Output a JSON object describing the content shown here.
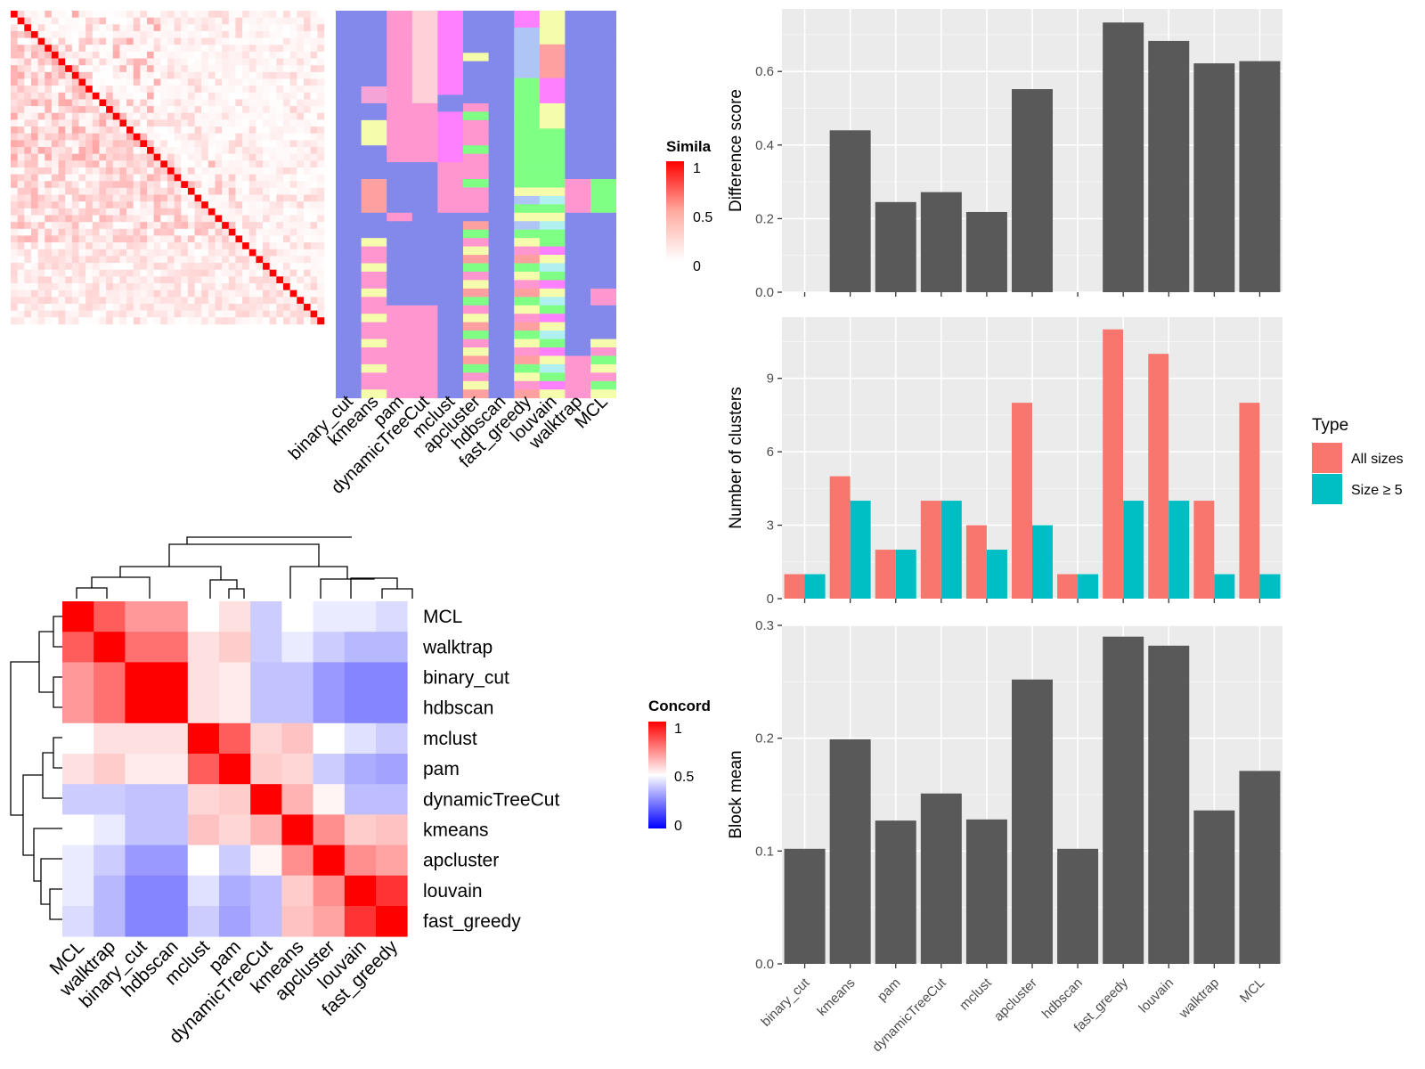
{
  "colors": {
    "panel_bg": "#ebebeb",
    "grid_major": "#ffffff",
    "bar_fill": "#595959",
    "all_sizes": "#f8766d",
    "size_ge5": "#00bfc4",
    "heat_red": "#ff0000",
    "heat_white": "#ffffff",
    "heat_blue": "#0000ff",
    "assign_palette": [
      "#8289ea",
      "#ff96cf",
      "#f5a4d8",
      "#ffa0a0",
      "#f5fcab",
      "#80ff85",
      "#aec5f5",
      "#b0f0f0",
      "#ff80ff",
      "#ffd0d6",
      "#ffffa8",
      "#a6f0f0"
    ]
  },
  "similarity_heatmap": {
    "legend_title": "Simila",
    "legend_ticks": [
      "1",
      "0.5",
      "0"
    ],
    "n_cells": 46
  },
  "assignment_heatmap": {
    "columns": [
      "binary_cut",
      "kmeans",
      "pam",
      "dynamicTreeCut",
      "mclust",
      "apcluster",
      "hdbscan",
      "fast_greedy",
      "louvain",
      "walktrap",
      "MCL"
    ],
    "n_rows": 46
  },
  "chart_data": [
    {
      "type": "heatmap",
      "title": "",
      "legend_title": "Concord",
      "legend_ticks": [
        "1",
        "0.5",
        "0"
      ],
      "rows": [
        "MCL",
        "walktrap",
        "binary_cut",
        "hdbscan",
        "mclust",
        "pam",
        "dynamicTreeCut",
        "kmeans",
        "apcluster",
        "louvain",
        "fast_greedy"
      ],
      "columns": [
        "MCL",
        "walktrap",
        "binary_cut",
        "hdbscan",
        "mclust",
        "pam",
        "dynamicTreeCut",
        "kmeans",
        "apcluster",
        "louvain",
        "fast_greedy"
      ],
      "values": [
        [
          1.0,
          0.82,
          0.7,
          0.7,
          0.5,
          0.56,
          0.4,
          0.5,
          0.46,
          0.46,
          0.43
        ],
        [
          0.82,
          1.0,
          0.78,
          0.78,
          0.56,
          0.6,
          0.4,
          0.46,
          0.4,
          0.36,
          0.36
        ],
        [
          0.7,
          0.78,
          1.0,
          1.0,
          0.56,
          0.54,
          0.38,
          0.38,
          0.3,
          0.26,
          0.26
        ],
        [
          0.7,
          0.78,
          1.0,
          1.0,
          0.56,
          0.54,
          0.38,
          0.38,
          0.3,
          0.26,
          0.26
        ],
        [
          0.5,
          0.56,
          0.56,
          0.56,
          1.0,
          0.82,
          0.58,
          0.62,
          0.5,
          0.44,
          0.4
        ],
        [
          0.56,
          0.6,
          0.54,
          0.54,
          0.82,
          1.0,
          0.6,
          0.58,
          0.4,
          0.34,
          0.32
        ],
        [
          0.4,
          0.4,
          0.38,
          0.38,
          0.58,
          0.6,
          1.0,
          0.65,
          0.52,
          0.37,
          0.37
        ],
        [
          0.5,
          0.46,
          0.38,
          0.38,
          0.62,
          0.58,
          0.65,
          1.0,
          0.72,
          0.6,
          0.62
        ],
        [
          0.46,
          0.4,
          0.3,
          0.3,
          0.5,
          0.4,
          0.52,
          0.72,
          1.0,
          0.72,
          0.68
        ],
        [
          0.46,
          0.36,
          0.26,
          0.26,
          0.44,
          0.34,
          0.37,
          0.6,
          0.72,
          1.0,
          0.9
        ],
        [
          0.43,
          0.36,
          0.26,
          0.26,
          0.4,
          0.32,
          0.37,
          0.62,
          0.68,
          0.9,
          1.0
        ]
      ],
      "range": [
        0,
        1
      ]
    },
    {
      "type": "bar",
      "title": "",
      "xlabel": "",
      "ylabel": "Difference score",
      "categories": [
        "binary_cut",
        "kmeans",
        "pam",
        "dynamicTreeCut",
        "mclust",
        "apcluster",
        "hdbscan",
        "fast_greedy",
        "louvain",
        "walktrap",
        "MCL"
      ],
      "values": [
        0,
        0.44,
        0.245,
        0.272,
        0.218,
        0.552,
        0,
        0.733,
        0.683,
        0.622,
        0.628
      ],
      "ylim": [
        0,
        0.77
      ],
      "yticks": [
        "0.0",
        "0.2",
        "0.4",
        "0.6"
      ],
      "grid": true
    },
    {
      "type": "bar",
      "title": "",
      "xlabel": "",
      "ylabel": "Number of clusters",
      "categories": [
        "binary_cut",
        "kmeans",
        "pam",
        "dynamicTreeCut",
        "mclust",
        "apcluster",
        "hdbscan",
        "fast_greedy",
        "louvain",
        "walktrap",
        "MCL"
      ],
      "series": [
        {
          "name": "All sizes",
          "values": [
            1,
            5,
            2,
            4,
            3,
            8,
            1,
            11,
            10,
            4,
            8
          ]
        },
        {
          "name": "Size ≥ 5",
          "values": [
            1,
            4,
            2,
            4,
            2,
            3,
            1,
            4,
            4,
            1,
            1
          ]
        }
      ],
      "ylim": [
        0,
        11.5
      ],
      "yticks": [
        "0",
        "3",
        "6",
        "9"
      ],
      "legend_title": "Type",
      "legend_position": "right",
      "grid": true
    },
    {
      "type": "bar",
      "title": "",
      "xlabel": "",
      "ylabel": "Block mean",
      "categories": [
        "binary_cut",
        "kmeans",
        "pam",
        "dynamicTreeCut",
        "mclust",
        "apcluster",
        "hdbscan",
        "fast_greedy",
        "louvain",
        "walktrap",
        "MCL"
      ],
      "values": [
        0.102,
        0.199,
        0.127,
        0.151,
        0.128,
        0.252,
        0.102,
        0.29,
        0.282,
        0.136,
        0.171
      ],
      "ylim": [
        0,
        0.3
      ],
      "yticks": [
        "0.0",
        "0.1",
        "0.2",
        "0.3"
      ],
      "grid": true
    }
  ]
}
